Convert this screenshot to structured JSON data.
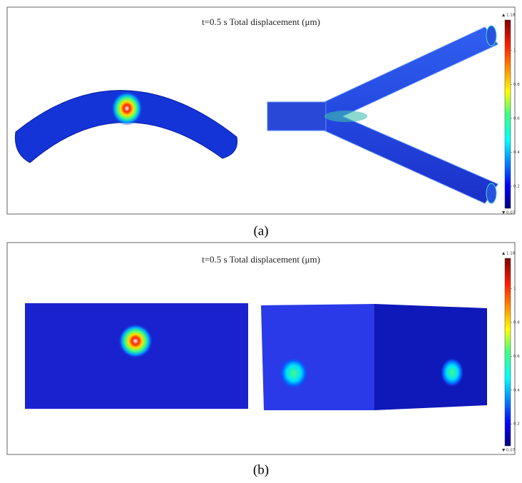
{
  "panels": [
    {
      "title": "t=0.5 s   Total displacement (μm)",
      "colorbar": {
        "min": {
          "value": 0.07,
          "label": "▼ 0.07"
        },
        "max": {
          "value": 1.18,
          "label": "▲ 1.18"
        },
        "ticks": [
          1,
          0.8,
          0.6,
          0.4,
          0.2
        ]
      },
      "label": "(a)"
    },
    {
      "title": "t=0.5 s   Total displacement (μm)",
      "colorbar": {
        "min": {
          "value": 0.07,
          "label": "▼ 0.07"
        },
        "max": {
          "value": 1.18,
          "label": "▲ 1.18"
        },
        "ticks": [
          1,
          0.8,
          0.6,
          0.4,
          0.2
        ]
      },
      "label": "(b)"
    }
  ]
}
